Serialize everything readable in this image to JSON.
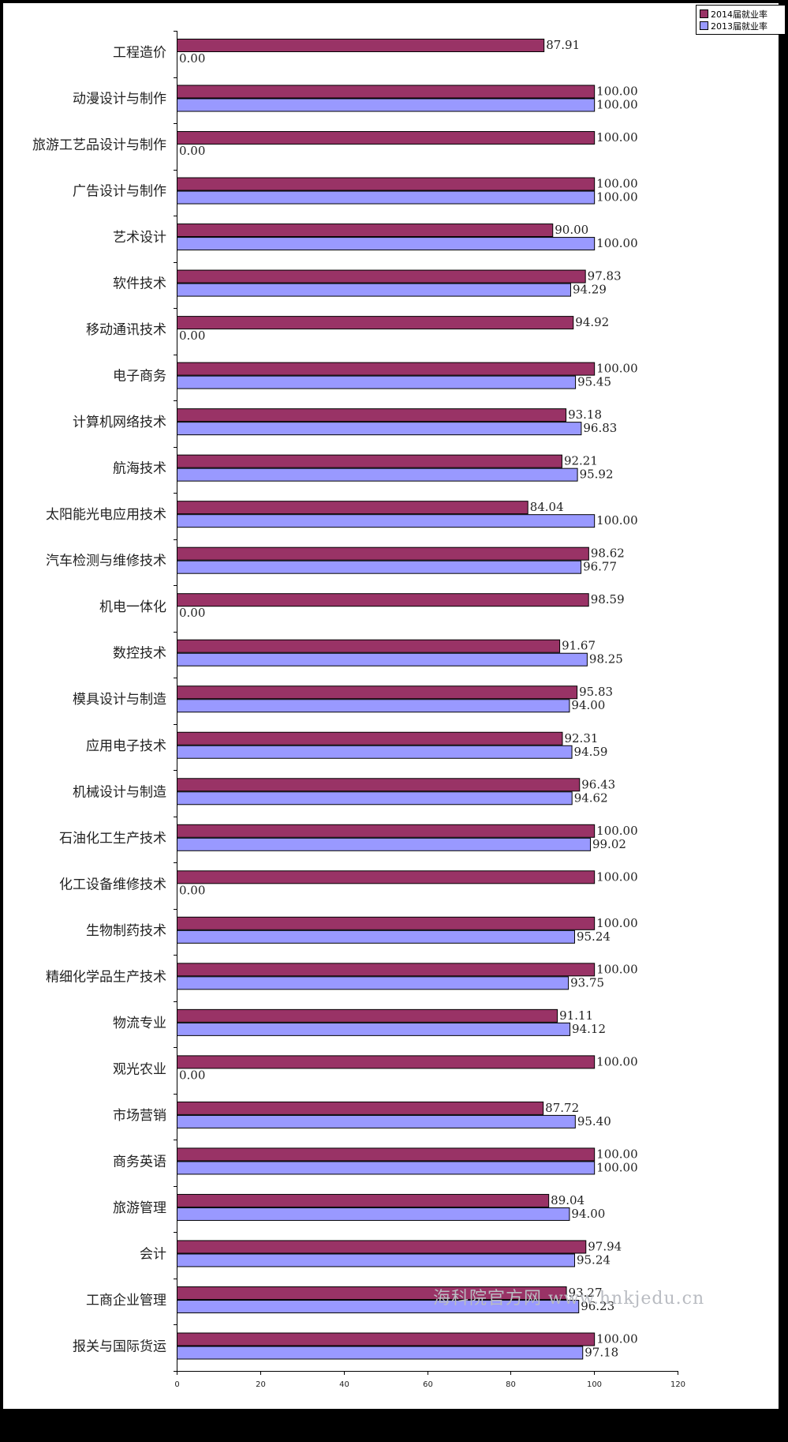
{
  "chart_data": {
    "type": "bar",
    "orientation": "horizontal",
    "categories": [
      "工程造价",
      "动漫设计与制作",
      "旅游工艺品设计与制作",
      "广告设计与制作",
      "艺术设计",
      "软件技术",
      "移动通讯技术",
      "电子商务",
      "计算机网络技术",
      "航海技术",
      "太阳能光电应用技术",
      "汽车检测与维修技术",
      "机电一体化",
      "数控技术",
      "模具设计与制造",
      "应用电子技术",
      "机械设计与制造",
      "石油化工生产技术",
      "化工设备维修技术",
      "生物制药技术",
      "精细化学品生产技术",
      "物流专业",
      "观光农业",
      "市场营销",
      "商务英语",
      "旅游管理",
      "会计",
      "工商企业管理",
      "报关与国际货运"
    ],
    "series": [
      {
        "name": "2014届就业率",
        "color": "#993366",
        "values": [
          87.91,
          100.0,
          100.0,
          100.0,
          90.0,
          97.83,
          94.92,
          100.0,
          93.18,
          92.21,
          84.04,
          98.62,
          98.59,
          91.67,
          95.83,
          92.31,
          96.43,
          100.0,
          100.0,
          100.0,
          100.0,
          91.11,
          100.0,
          87.72,
          100.0,
          89.04,
          97.94,
          93.27,
          100.0
        ],
        "labels": [
          "87.91",
          "100.00",
          "100.00",
          "100.00",
          "90.00",
          "97.83",
          "94.92",
          "100.00",
          "93.18",
          "92.21",
          "84.04",
          "98.62",
          "98.59",
          "91.67",
          "95.83",
          "92.31",
          "96.43",
          "100.00",
          "100.00",
          "100.00",
          "100.00",
          "91.11",
          "100.00",
          "87.72",
          "100.00",
          "89.04",
          "97.94",
          "93.27",
          "100.00"
        ]
      },
      {
        "name": "2013届就业率",
        "color": "#9999FF",
        "values": [
          0,
          100.0,
          0,
          100.0,
          100.0,
          94.29,
          0,
          95.45,
          96.83,
          95.92,
          100.0,
          96.77,
          0,
          98.25,
          94.0,
          94.59,
          94.62,
          99.02,
          0,
          95.24,
          93.75,
          94.12,
          0,
          95.4,
          100.0,
          94.0,
          95.24,
          96.23,
          97.18
        ],
        "labels": [
          "0.00",
          "100.00",
          "0.00",
          "100.00",
          "100.00",
          "94.29",
          "0.00",
          "95.45",
          "96.83",
          "95.92",
          "100.00",
          "96.77",
          "0.00",
          "98.25",
          "94.00",
          "94.59",
          "94.62",
          "99.02",
          "0.00",
          "95.24",
          "93.75",
          "94.12",
          "0.00",
          "95.40",
          "100.00",
          "94.00",
          "95.24",
          "96.23",
          "97.18"
        ]
      }
    ],
    "xlim": [
      0,
      120
    ],
    "xticks": [
      "0",
      "20",
      "40",
      "60",
      "80",
      "100",
      "120"
    ],
    "legend_position": "top-right",
    "grid": false
  },
  "watermark": "海科院官方网 www.hnkjedu.cn"
}
